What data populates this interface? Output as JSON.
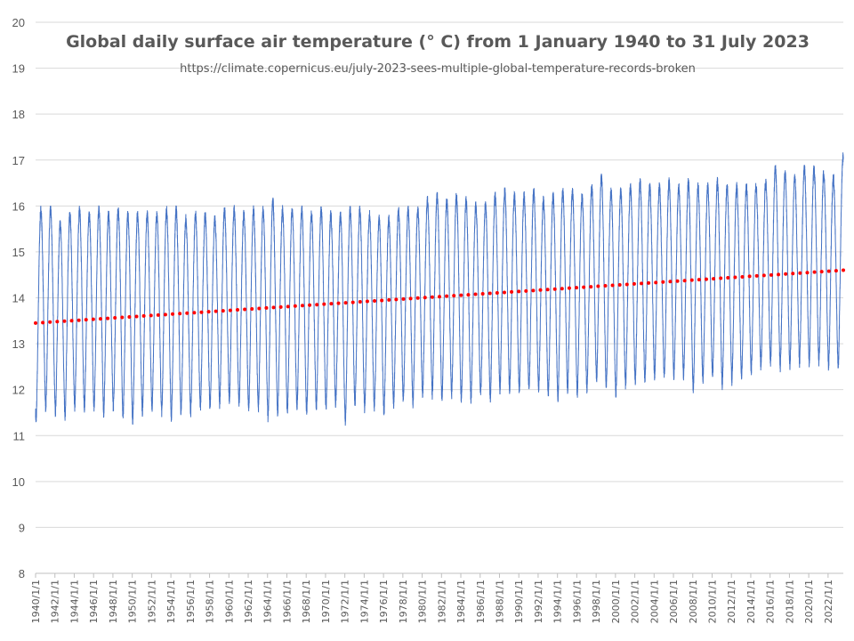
{
  "chart_data": {
    "type": "line",
    "title": "Global daily surface air temperature (° C) from 1 January 1940 to 31 July 2023",
    "subtitle": "https://climate.copernicus.eu/july-2023-sees-multiple-global-temperature-records-broken",
    "xlabel": "",
    "ylabel": "",
    "ylim": [
      8,
      20
    ],
    "yticks": [
      "8",
      "9",
      "10",
      "11",
      "12",
      "13",
      "14",
      "15",
      "16",
      "17",
      "18",
      "19",
      "20"
    ],
    "xrange": [
      "1940-01-01",
      "2023-07-31"
    ],
    "xticks": [
      "1940/1/1",
      "1942/1/1",
      "1944/1/1",
      "1946/1/1",
      "1948/1/1",
      "1950/1/1",
      "1952/1/1",
      "1954/1/1",
      "1956/1/1",
      "1958/1/1",
      "1960/1/1",
      "1962/1/1",
      "1964/1/1",
      "1966/1/1",
      "1968/1/1",
      "1970/1/1",
      "1972/1/1",
      "1974/1/1",
      "1976/1/1",
      "1978/1/1",
      "1980/1/1",
      "1982/1/1",
      "1984/1/1",
      "1986/1/1",
      "1988/1/1",
      "1990/1/1",
      "1992/1/1",
      "1994/1/1",
      "1996/1/1",
      "1998/1/1",
      "2000/1/1",
      "2002/1/1",
      "2004/1/1",
      "2006/1/1",
      "2008/1/1",
      "2010/1/1",
      "2012/1/1",
      "2014/1/1",
      "2016/1/1",
      "2018/1/1",
      "2020/1/1",
      "2022/1/1"
    ],
    "grid": true,
    "series": [
      {
        "kind": "daily-temperature",
        "color": "#4472C4",
        "years": [
          1940,
          1941,
          1942,
          1943,
          1944,
          1945,
          1946,
          1947,
          1948,
          1949,
          1950,
          1951,
          1952,
          1953,
          1954,
          1955,
          1956,
          1957,
          1958,
          1959,
          1960,
          1961,
          1962,
          1963,
          1964,
          1965,
          1966,
          1967,
          1968,
          1969,
          1970,
          1971,
          1972,
          1973,
          1974,
          1975,
          1976,
          1977,
          1978,
          1979,
          1980,
          1981,
          1982,
          1983,
          1984,
          1985,
          1986,
          1987,
          1988,
          1989,
          1990,
          1991,
          1992,
          1993,
          1994,
          1995,
          1996,
          1997,
          1998,
          1999,
          2000,
          2001,
          2002,
          2003,
          2004,
          2005,
          2006,
          2007,
          2008,
          2009,
          2010,
          2011,
          2012,
          2013,
          2014,
          2015,
          2016,
          2017,
          2018,
          2019,
          2020,
          2021,
          2022,
          2023
        ],
        "annual_max": [
          15.9,
          15.9,
          15.6,
          15.8,
          15.9,
          15.8,
          15.9,
          15.8,
          15.9,
          15.8,
          15.8,
          15.8,
          15.8,
          15.9,
          15.9,
          15.7,
          15.8,
          15.8,
          15.7,
          15.9,
          15.9,
          15.8,
          15.9,
          15.9,
          16.1,
          15.9,
          15.9,
          15.9,
          15.8,
          15.9,
          15.8,
          15.8,
          15.9,
          15.9,
          15.8,
          15.7,
          15.7,
          15.9,
          15.9,
          15.9,
          16.1,
          16.2,
          16.1,
          16.2,
          16.1,
          16.0,
          16.0,
          16.2,
          16.3,
          16.2,
          16.2,
          16.3,
          16.1,
          16.2,
          16.3,
          16.3,
          16.2,
          16.4,
          16.6,
          16.3,
          16.3,
          16.4,
          16.5,
          16.4,
          16.4,
          16.5,
          16.4,
          16.5,
          16.4,
          16.4,
          16.5,
          16.4,
          16.4,
          16.4,
          16.4,
          16.5,
          16.8,
          16.7,
          16.6,
          16.8,
          16.8,
          16.7,
          16.6,
          17.05
        ],
        "annual_min": [
          11.3,
          11.6,
          11.5,
          11.4,
          11.6,
          11.6,
          11.6,
          11.5,
          11.6,
          11.4,
          11.3,
          11.5,
          11.6,
          11.5,
          11.4,
          11.5,
          11.5,
          11.6,
          11.6,
          11.7,
          11.8,
          11.7,
          11.6,
          11.6,
          11.4,
          11.5,
          11.5,
          11.6,
          11.5,
          11.6,
          11.6,
          11.7,
          11.3,
          11.7,
          11.6,
          11.6,
          11.5,
          11.7,
          11.8,
          11.7,
          11.9,
          11.9,
          11.8,
          11.9,
          11.8,
          11.8,
          11.9,
          11.8,
          12.0,
          12.0,
          12.0,
          12.0,
          12.0,
          11.9,
          11.8,
          12.0,
          11.9,
          12.0,
          12.2,
          12.1,
          11.9,
          12.1,
          12.2,
          12.2,
          12.3,
          12.3,
          12.3,
          12.3,
          12.0,
          12.2,
          12.3,
          12.1,
          12.2,
          12.3,
          12.4,
          12.5,
          12.6,
          12.5,
          12.5,
          12.6,
          12.6,
          12.6,
          12.5,
          12.5
        ]
      },
      {
        "kind": "linear-trend",
        "color": "#FF0000",
        "start": {
          "date": "1940-01-01",
          "value": 13.45
        },
        "end": {
          "date": "2023-07-31",
          "value": 14.6
        }
      }
    ]
  }
}
